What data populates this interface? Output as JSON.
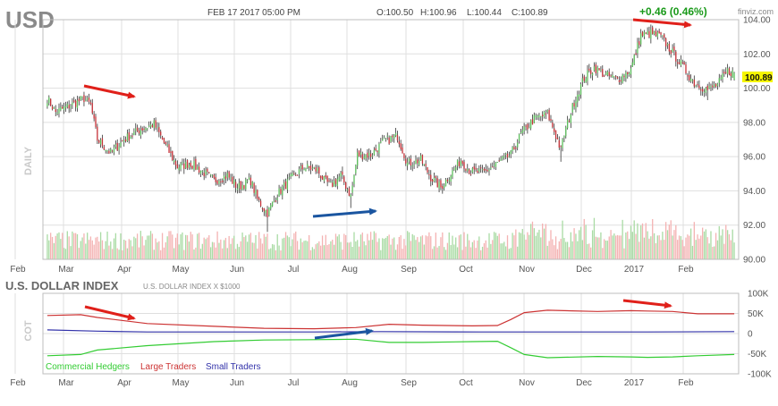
{
  "header": {
    "symbol": "USD",
    "datetime": "FEB 17 2017 05:00 PM",
    "ohlc": {
      "open": "O:100.50",
      "high": "H:100.96",
      "low": "L:100.44",
      "close": "C:100.89"
    },
    "change": "+0.46 (0.46%)",
    "brand": "finviz.com",
    "timeframe_label": "DAILY",
    "last_price": "100.89"
  },
  "colors": {
    "up": "#5cbf5c",
    "down": "#c8333a",
    "wick": "#333333",
    "vol_up": "#a9dba4",
    "vol_down": "#f4b3b3",
    "grid": "#dfdfdf",
    "axis_text": "#555555",
    "commercial": "#33cc33",
    "large": "#cc3333",
    "small": "#3333aa",
    "annotation_red": "#e0201a",
    "annotation_blue": "#1a55a0",
    "price_badge": "#f5f500",
    "change": "#1a9a1a"
  },
  "chart_data": [
    {
      "type": "candlestick",
      "title": "USD",
      "yaxis_position": "right",
      "ylim": [
        90,
        104
      ],
      "yticks": [
        90,
        92,
        94,
        96,
        98,
        100,
        102,
        104
      ],
      "ytick_labels": [
        "90.00",
        "92.00",
        "94.00",
        "96.00",
        "98.00",
        "100.00",
        "102.00",
        "104.00"
      ],
      "xtick_labels": [
        "Feb",
        "Mar",
        "Apr",
        "May",
        "Jun",
        "Jul",
        "Aug",
        "Sep",
        "Oct",
        "Nov",
        "Dec",
        "2017",
        "Feb"
      ],
      "grid": true,
      "anchors": [
        {
          "t": 0,
          "v": 99.4
        },
        {
          "t": 5,
          "v": 98.6
        },
        {
          "t": 14,
          "v": 99.0
        },
        {
          "t": 22,
          "v": 99.4
        },
        {
          "t": 26,
          "v": 99.0
        },
        {
          "t": 30,
          "v": 97.0
        },
        {
          "t": 38,
          "v": 96.2
        },
        {
          "t": 46,
          "v": 97.0
        },
        {
          "t": 56,
          "v": 97.6
        },
        {
          "t": 64,
          "v": 97.9
        },
        {
          "t": 70,
          "v": 96.8
        },
        {
          "t": 78,
          "v": 95.4
        },
        {
          "t": 86,
          "v": 95.6
        },
        {
          "t": 92,
          "v": 95.2
        },
        {
          "t": 100,
          "v": 94.6
        },
        {
          "t": 108,
          "v": 94.9
        },
        {
          "t": 114,
          "v": 94.2
        },
        {
          "t": 122,
          "v": 94.6
        },
        {
          "t": 126,
          "v": 93.5
        },
        {
          "t": 132,
          "v": 92.7
        },
        {
          "t": 138,
          "v": 93.8
        },
        {
          "t": 146,
          "v": 94.7
        },
        {
          "t": 154,
          "v": 95.4
        },
        {
          "t": 162,
          "v": 95.2
        },
        {
          "t": 166,
          "v": 94.6
        },
        {
          "t": 170,
          "v": 94.3
        },
        {
          "t": 176,
          "v": 94.9
        },
        {
          "t": 182,
          "v": 93.7
        },
        {
          "t": 186,
          "v": 96.1
        },
        {
          "t": 194,
          "v": 96.1
        },
        {
          "t": 202,
          "v": 96.9
        },
        {
          "t": 210,
          "v": 97.2
        },
        {
          "t": 216,
          "v": 95.6
        },
        {
          "t": 224,
          "v": 95.8
        },
        {
          "t": 230,
          "v": 94.8
        },
        {
          "t": 236,
          "v": 94.2
        },
        {
          "t": 242,
          "v": 95.0
        },
        {
          "t": 248,
          "v": 95.8
        },
        {
          "t": 254,
          "v": 95.1
        },
        {
          "t": 262,
          "v": 95.1
        },
        {
          "t": 270,
          "v": 95.6
        },
        {
          "t": 278,
          "v": 96.1
        },
        {
          "t": 284,
          "v": 97.3
        },
        {
          "t": 292,
          "v": 98.2
        },
        {
          "t": 300,
          "v": 98.5
        },
        {
          "t": 304,
          "v": 97.5
        },
        {
          "t": 308,
          "v": 96.4
        },
        {
          "t": 310,
          "v": 97.3
        },
        {
          "t": 316,
          "v": 99.2
        },
        {
          "t": 322,
          "v": 100.6
        },
        {
          "t": 328,
          "v": 101.2
        },
        {
          "t": 334,
          "v": 100.8
        },
        {
          "t": 342,
          "v": 100.5
        },
        {
          "t": 350,
          "v": 101.1
        },
        {
          "t": 356,
          "v": 103.1
        },
        {
          "t": 362,
          "v": 103.2
        },
        {
          "t": 368,
          "v": 103.0
        },
        {
          "t": 374,
          "v": 102.2
        },
        {
          "t": 380,
          "v": 101.4
        },
        {
          "t": 388,
          "v": 100.3
        },
        {
          "t": 396,
          "v": 99.9
        },
        {
          "t": 402,
          "v": 100.2
        },
        {
          "t": 408,
          "v": 101.0
        },
        {
          "t": 412,
          "v": 100.9
        }
      ],
      "last": {
        "open": 100.5,
        "high": 100.96,
        "low": 100.44,
        "close": 100.89
      }
    },
    {
      "type": "line",
      "title": "U.S. DOLLAR INDEX",
      "subtitle": "U.S. DOLLAR INDEX X $1000",
      "ylabel": "COT",
      "ylim": [
        -100,
        100
      ],
      "yticks": [
        -100,
        -50,
        0,
        50,
        100
      ],
      "ytick_labels": [
        "-100K",
        "-50K",
        "0",
        "50K",
        "100K"
      ],
      "grid": true,
      "series": [
        {
          "name": "Commercial Hedgers",
          "points": [
            [
              0,
              -55
            ],
            [
              20,
              -52
            ],
            [
              30,
              -41
            ],
            [
              60,
              -30
            ],
            [
              100,
              -20
            ],
            [
              130,
              -16
            ],
            [
              160,
              -15
            ],
            [
              185,
              -14
            ],
            [
              205,
              -22
            ],
            [
              225,
              -22
            ],
            [
              255,
              -20
            ],
            [
              270,
              -19
            ],
            [
              278,
              -35
            ],
            [
              286,
              -52
            ],
            [
              300,
              -60
            ],
            [
              330,
              -57
            ],
            [
              350,
              -58
            ],
            [
              360,
              -59
            ],
            [
              375,
              -58
            ],
            [
              390,
              -55
            ],
            [
              412,
              -52
            ]
          ]
        },
        {
          "name": "Large Traders",
          "points": [
            [
              0,
              45
            ],
            [
              20,
              47
            ],
            [
              30,
              40
            ],
            [
              60,
              25
            ],
            [
              100,
              18
            ],
            [
              130,
              13
            ],
            [
              160,
              12
            ],
            [
              185,
              15
            ],
            [
              205,
              23
            ],
            [
              225,
              21
            ],
            [
              255,
              19
            ],
            [
              270,
              20
            ],
            [
              278,
              35
            ],
            [
              286,
              52
            ],
            [
              300,
              58
            ],
            [
              330,
              55
            ],
            [
              350,
              57
            ],
            [
              360,
              56
            ],
            [
              375,
              55
            ],
            [
              390,
              49
            ],
            [
              412,
              49
            ]
          ]
        },
        {
          "name": "Small Traders",
          "points": [
            [
              0,
              9
            ],
            [
              30,
              6
            ],
            [
              60,
              4
            ],
            [
              100,
              4
            ],
            [
              160,
              4
            ],
            [
              200,
              5
            ],
            [
              260,
              4
            ],
            [
              300,
              4
            ],
            [
              360,
              4
            ],
            [
              412,
              5
            ]
          ]
        }
      ]
    }
  ]
}
